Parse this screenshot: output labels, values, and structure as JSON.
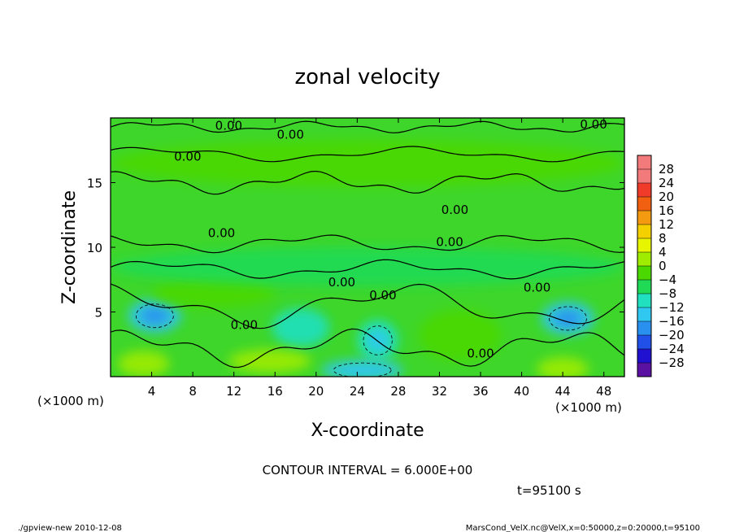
{
  "chart_data": {
    "type": "heatmap",
    "title": "zonal velocity",
    "xlabel": "X-coordinate",
    "ylabel": "Z-coordinate",
    "x_unit_label": "(×1000 m)",
    "x_unit_label_right": "(×1000 m)",
    "xlim": [
      0,
      50
    ],
    "ylim": [
      0,
      20
    ],
    "x_ticks": [
      4,
      8,
      12,
      16,
      20,
      24,
      28,
      32,
      36,
      40,
      44,
      48
    ],
    "y_ticks": [
      5,
      10,
      15
    ],
    "colorbar": {
      "levels": [
        28,
        24,
        20,
        16,
        12,
        8,
        4,
        0,
        -4,
        -8,
        -12,
        -16,
        -20,
        -24,
        -28
      ],
      "colors": [
        "#f27a7a",
        "#f03a2a",
        "#f06010",
        "#f39a10",
        "#f5d000",
        "#e8f500",
        "#a0ec00",
        "#4ad800",
        "#20da55",
        "#20e0c0",
        "#30c8f0",
        "#2a90f0",
        "#2050e8",
        "#2010d0",
        "#5a10a0"
      ]
    },
    "contour_labels": [
      "0.00",
      "0.00",
      "0.00",
      "0.00",
      "0.00",
      "0.00",
      "0.00",
      "0.00",
      "0.00",
      "0.00",
      "0.00",
      "0.00"
    ],
    "contour_interval": "CONTOUR INTERVAL = 6.000E+00",
    "time_label": "t=95100 s",
    "footer_left": "./gpview-new  2010-12-08",
    "footer_right": "MarsCond_VelX.nc@VelX,x=0:50000,z=0:20000,t=95100",
    "features": [
      {
        "type": "jet",
        "center": [
          4.3,
          4.7
        ],
        "extent": [
          2.6,
          1.3
        ],
        "value": -10
      },
      {
        "type": "jet",
        "center": [
          18.5,
          3.8
        ],
        "extent": [
          2.8,
          1.5
        ],
        "value": -6
      },
      {
        "type": "jet",
        "center": [
          26.0,
          2.8
        ],
        "extent": [
          2.0,
          1.6
        ],
        "value": -8
      },
      {
        "type": "jet",
        "center": [
          44.5,
          4.5
        ],
        "extent": [
          2.6,
          1.3
        ],
        "value": -10
      },
      {
        "type": "jet",
        "center": [
          24.5,
          0.5
        ],
        "extent": [
          4.0,
          0.8
        ],
        "value": -9
      },
      {
        "type": "jet",
        "center": [
          3.2,
          1.0
        ],
        "extent": [
          2.5,
          1.0
        ],
        "value": 7
      },
      {
        "type": "jet",
        "center": [
          15.5,
          1.2
        ],
        "extent": [
          4.0,
          0.9
        ],
        "value": 5
      },
      {
        "type": "jet",
        "center": [
          44.0,
          0.6
        ],
        "extent": [
          2.5,
          0.9
        ],
        "value": 7
      },
      {
        "type": "jet",
        "center": [
          34.0,
          3.2
        ],
        "extent": [
          4.0,
          2.0
        ],
        "value": 2
      },
      {
        "type": "jet",
        "center": [
          10.0,
          6.5
        ],
        "extent": [
          6.0,
          1.2
        ],
        "value": 2
      },
      {
        "type": "jet",
        "center": [
          25.0,
          8.5
        ],
        "extent": [
          25.0,
          1.5
        ],
        "value": -1.5
      },
      {
        "type": "jet",
        "center": [
          25.0,
          16.5
        ],
        "extent": [
          25.0,
          1.8
        ],
        "value": 1
      }
    ]
  }
}
